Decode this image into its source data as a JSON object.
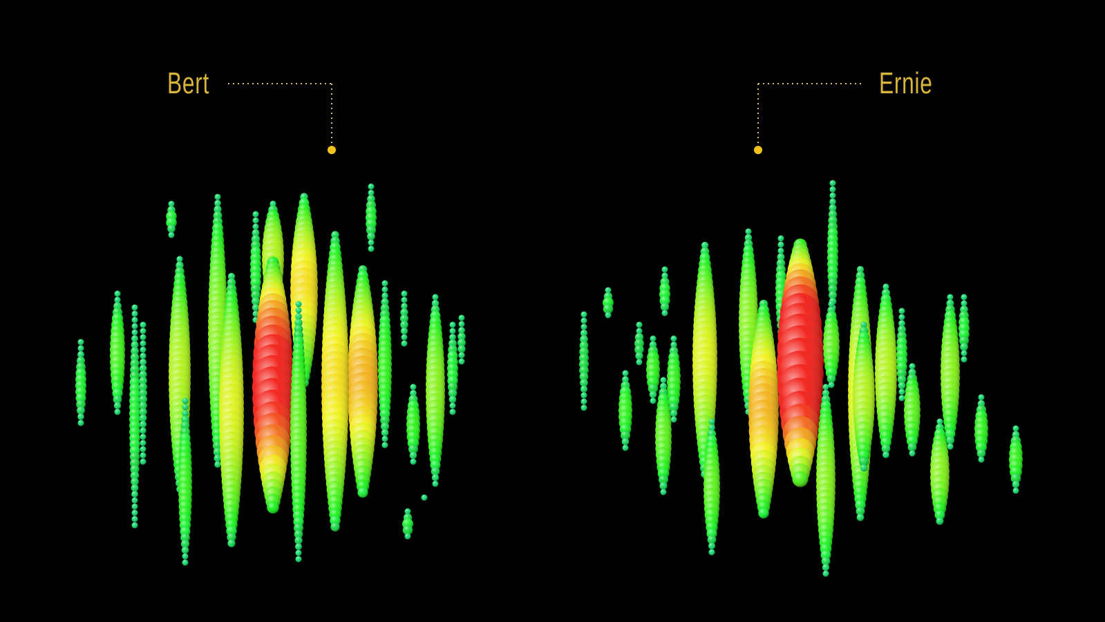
{
  "events": [
    {
      "name": "Bert"
    },
    {
      "name": "Ernie"
    }
  ],
  "colors": {
    "background": "#000000",
    "label": "#d9b43a",
    "marker": "#f2c21b"
  }
}
